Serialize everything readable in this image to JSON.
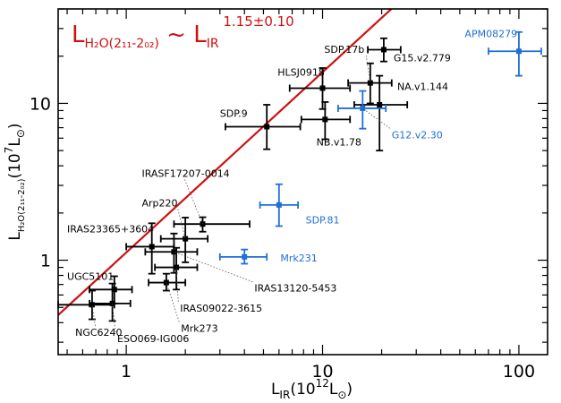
{
  "chart_data": {
    "type": "scatter",
    "xscale": "log",
    "yscale": "log",
    "xlim": [
      0.45,
      140
    ],
    "ylim": [
      0.25,
      40
    ],
    "x_ticks": [
      {
        "value": 1,
        "label": "1"
      },
      {
        "value": 10,
        "label": "10"
      },
      {
        "value": 100,
        "label": "100"
      }
    ],
    "y_ticks": [
      {
        "value": 1,
        "label": "1"
      },
      {
        "value": 10,
        "label": "10"
      }
    ],
    "xlabel": {
      "main": "L",
      "sub": "IR",
      "rest": "(10",
      "sup": "12",
      "unit": "L",
      "unitsub": "⊙",
      "close": ")"
    },
    "ylabel": {
      "main": "L",
      "sub": "H₂O(2₁₁-2₀₂)",
      "rest": "(10",
      "sup": "7",
      "unit": "L",
      "unitsub": "⊙",
      "close": ")"
    },
    "annotation": {
      "lhs": "L",
      "lhs_sub": "H₂O(2₁₁-2₀₂)",
      "tilde": "~",
      "rhs": "L",
      "rhs_sub": "IR",
      "exponent": "1.15±0.10"
    },
    "fit_line": {
      "slope": 1.15,
      "intercept_at_x1": 1.12,
      "color": "#d01010"
    },
    "colors": {
      "black": "#000000",
      "blue": "#1f6fd6",
      "red": "#d01010"
    },
    "points": [
      {
        "name": "NGC6240",
        "x": 0.67,
        "y": 0.52,
        "xerr": [
          0.22,
          0.2
        ],
        "yerr": [
          0.1,
          0.12
        ],
        "color": "black",
        "label_x": 0.55,
        "label_y": 0.33,
        "leader": true
      },
      {
        "name": "UGC5101",
        "x": 0.87,
        "y": 0.65,
        "xerr": [
          0.22,
          0.2
        ],
        "yerr": [
          0.12,
          0.14
        ],
        "color": "black",
        "label_x": 0.5,
        "label_y": 0.75,
        "leader": false
      },
      {
        "name": "ESO069-IG006",
        "x": 0.85,
        "y": 0.53,
        "xerr": [
          0.2,
          0.2
        ],
        "yerr": [
          0.12,
          0.18
        ],
        "color": "black",
        "label_x": 0.9,
        "label_y": 0.3,
        "leader": true
      },
      {
        "name": "Mrk273",
        "x": 1.6,
        "y": 0.72,
        "xerr": [
          0.3,
          0.4
        ],
        "yerr": [
          0.08,
          0.1
        ],
        "color": "black",
        "label_x": 1.9,
        "label_y": 0.35,
        "leader": true
      },
      {
        "name": "IRAS09022-3615",
        "x": 1.8,
        "y": 0.9,
        "xerr": [
          0.4,
          0.5
        ],
        "yerr": [
          0.25,
          0.3
        ],
        "color": "black",
        "label_x": 1.88,
        "label_y": 0.47,
        "leader": true
      },
      {
        "name": "IRAS13120-5453",
        "x": 1.75,
        "y": 1.13,
        "xerr": [
          0.5,
          0.55
        ],
        "yerr": [
          0.3,
          0.35
        ],
        "color": "black",
        "label_x": 4.5,
        "label_y": 0.63,
        "leader": true
      },
      {
        "name": "IRAS23365+3604",
        "x": 1.35,
        "y": 1.22,
        "xerr": [
          0.35,
          0.4
        ],
        "yerr": [
          0.4,
          0.5
        ],
        "color": "black",
        "label_x": 0.5,
        "label_y": 1.5,
        "leader": false
      },
      {
        "name": "Arp220",
        "x": 2.0,
        "y": 1.37,
        "xerr": [
          0.5,
          0.6
        ],
        "yerr": [
          0.4,
          0.5
        ],
        "color": "black",
        "label_x": 1.2,
        "label_y": 2.2,
        "leader": true
      },
      {
        "name": "IRASF17207-0014",
        "x": 2.45,
        "y": 1.7,
        "xerr": [
          0.7,
          1.8
        ],
        "yerr": [
          0.18,
          0.18
        ],
        "color": "black",
        "label_x": 1.2,
        "label_y": 3.4,
        "leader": true
      },
      {
        "name": "SDP.81",
        "x": 6.0,
        "y": 2.25,
        "xerr": [
          1.2,
          1.5
        ],
        "yerr": [
          0.6,
          0.8
        ],
        "color": "blue",
        "label_x": 8.2,
        "label_y": 1.72,
        "leader": false
      },
      {
        "name": "Mrk231",
        "x": 4.0,
        "y": 1.05,
        "xerr": [
          1.0,
          1.2
        ],
        "yerr": [
          0.1,
          0.12
        ],
        "color": "blue",
        "label_x": 6.1,
        "label_y": 0.98,
        "leader": false
      },
      {
        "name": "SDP.9",
        "x": 5.2,
        "y": 7.1,
        "xerr": [
          2.0,
          2.5
        ],
        "yerr": [
          2.0,
          2.7
        ],
        "color": "black",
        "label_x": 3.0,
        "label_y": 8.2,
        "leader": false
      },
      {
        "name": "NB.v1.78",
        "x": 10.3,
        "y": 7.9,
        "xerr": [
          2.5,
          3.5
        ],
        "yerr": [
          2.0,
          2.3
        ],
        "color": "black",
        "label_x": 9.3,
        "label_y": 5.4,
        "leader": false
      },
      {
        "name": "HLSJ0918",
        "x": 10.0,
        "y": 12.5,
        "xerr": [
          3.2,
          3.8
        ],
        "yerr": [
          3.3,
          4.3
        ],
        "color": "black",
        "label_x": 5.9,
        "label_y": 15.0,
        "leader": false
      },
      {
        "name": "SDP.17b",
        "x": 17.5,
        "y": 13.5,
        "xerr": [
          4.0,
          5.0
        ],
        "yerr": [
          3.5,
          4.5
        ],
        "color": "black",
        "label_x": 10.2,
        "label_y": 21.0,
        "leader": true
      },
      {
        "name": "G15.v2.779",
        "x": 20.5,
        "y": 22.0,
        "xerr": [
          3.5,
          4.5
        ],
        "yerr": [
          3.5,
          4.0
        ],
        "color": "black",
        "label_x": 23.0,
        "label_y": 18.5,
        "leader": false
      },
      {
        "name": "NA.v1.144",
        "x": 19.5,
        "y": 9.8,
        "xerr": [
          5.0,
          7.5
        ],
        "yerr": [
          4.8,
          5.2
        ],
        "color": "black",
        "label_x": 24.0,
        "label_y": 12.2,
        "leader": false
      },
      {
        "name": "G12.v2.30",
        "x": 16.0,
        "y": 9.3,
        "xerr": [
          4.0,
          5.0
        ],
        "yerr": [
          2.4,
          2.7
        ],
        "color": "blue",
        "label_x": 22.5,
        "label_y": 6.0,
        "leader": true
      },
      {
        "name": "APM08279",
        "x": 100.0,
        "y": 21.5,
        "xerr": [
          30,
          30
        ],
        "yerr": [
          6.5,
          7.0
        ],
        "color": "blue",
        "label_x": 53.0,
        "label_y": 26.5,
        "leader": false
      }
    ]
  }
}
